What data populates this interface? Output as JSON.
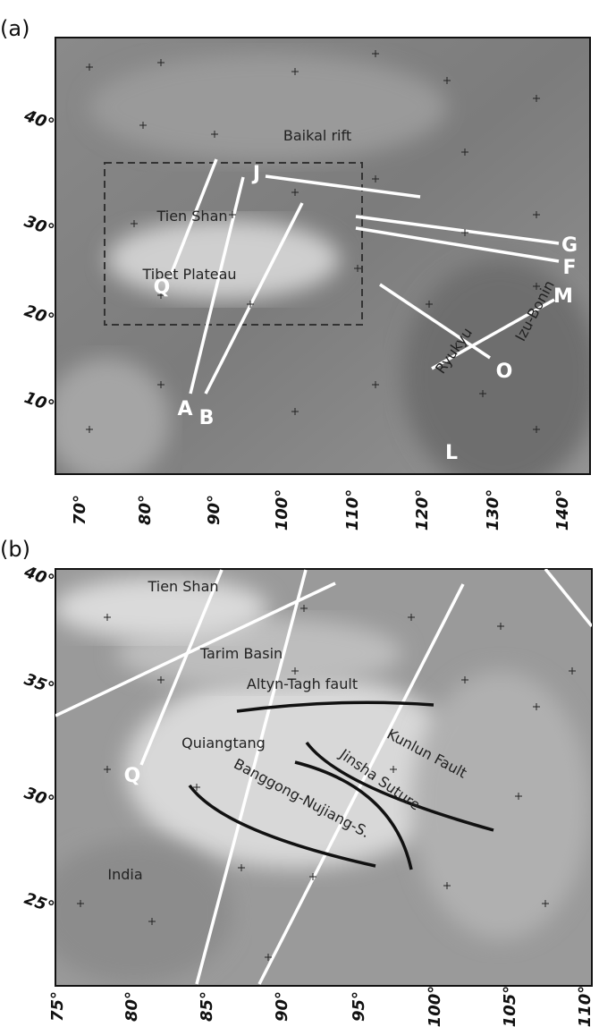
{
  "panels": [
    {
      "label": "(a)",
      "lat_labels": [
        "40°",
        "30°",
        "20°",
        "10°"
      ],
      "lon_labels": [
        "70°",
        "80°",
        "90°",
        "100°",
        "110°",
        "120°",
        "130°",
        "140°"
      ],
      "places": [
        "Baikal rift",
        "Tien Shan",
        "Tibet Plateau",
        "Ryukyu",
        "Izu-Bonin"
      ],
      "profiles": [
        "J",
        "G",
        "F",
        "M",
        "O",
        "Q",
        "A",
        "B",
        "L"
      ]
    },
    {
      "label": "(b)",
      "lat_labels": [
        "40°",
        "35°",
        "30°",
        "25°"
      ],
      "lon_labels": [
        "75°",
        "80°",
        "85°",
        "90°",
        "95°",
        "100°",
        "105°",
        "110°"
      ],
      "places": [
        "Tien Shan",
        "Tarim Basin",
        "Altyn-Tagh fault",
        "Quiangtang",
        "Kunlun Fault",
        "Jinsha Suture",
        "Banggong-Nujiang-S.",
        "India"
      ],
      "profiles": [
        "Q"
      ]
    }
  ]
}
